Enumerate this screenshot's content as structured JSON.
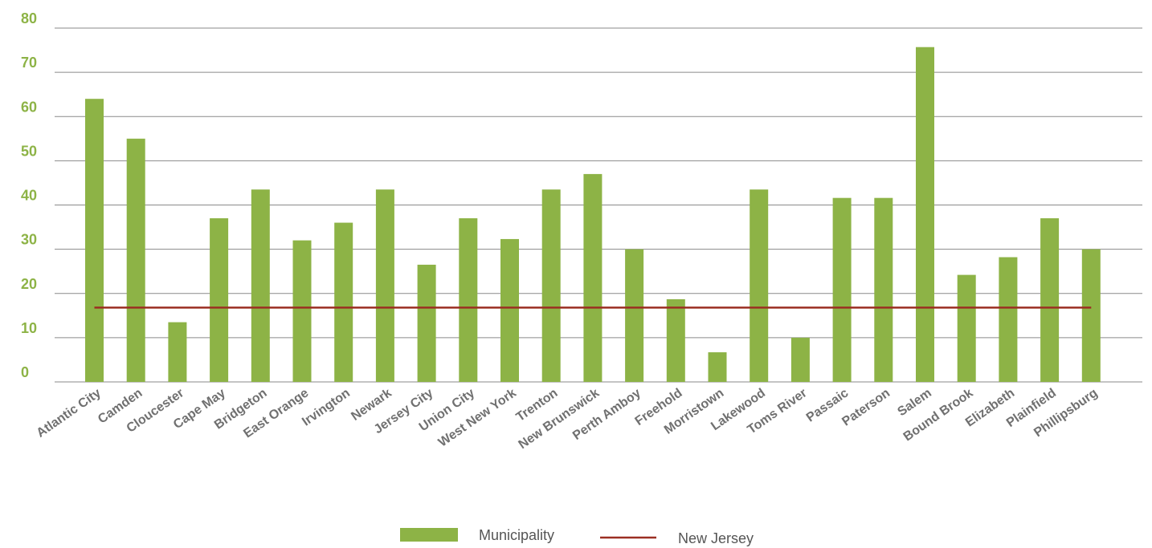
{
  "chart_data": {
    "type": "bar",
    "title": "",
    "xlabel": "",
    "ylabel": "",
    "ylim": [
      0,
      80
    ],
    "yticks": [
      0,
      10,
      20,
      30,
      40,
      50,
      60,
      70,
      80
    ],
    "grid": true,
    "legend_placement": "bottom-center",
    "categories": [
      "Atlantic City",
      "Camden",
      "Cloucester",
      "Cape May",
      "Bridgeton",
      "East Orange",
      "Irvington",
      "Newark",
      "Jersey City",
      "Union City",
      "West New York",
      "Trenton",
      "New Brunswick",
      "Perth Amboy",
      "Freehold",
      "Morristown",
      "Lakewood",
      "Toms River",
      "Passaic",
      "Paterson",
      "Salem",
      "Bound Brook",
      "Elizabeth",
      "Plainfield",
      "Phillipsburg"
    ],
    "series": [
      {
        "name": "Municipality",
        "kind": "bar",
        "color": "#8db346",
        "values": [
          64,
          55,
          13.5,
          37,
          43.5,
          32,
          36,
          43.5,
          26.5,
          37,
          32.3,
          43.5,
          47,
          30,
          18.7,
          6.7,
          43.5,
          10,
          41.6,
          41.6,
          75.7,
          24.2,
          28.2,
          37,
          30
        ]
      },
      {
        "name": "New Jersey",
        "kind": "line",
        "color": "#9b2f22",
        "values": [
          16.8,
          16.8,
          16.8,
          16.8,
          16.8,
          16.8,
          16.8,
          16.8,
          16.8,
          16.8,
          16.8,
          16.8,
          16.8,
          16.8,
          16.8,
          16.8,
          16.8,
          16.8,
          16.8,
          16.8,
          16.8,
          16.8,
          16.8,
          16.8,
          16.8
        ]
      }
    ],
    "colors": {
      "axis_tick": "#8db346",
      "category_tick": "#707070",
      "grid": "#8a8a8a"
    }
  }
}
